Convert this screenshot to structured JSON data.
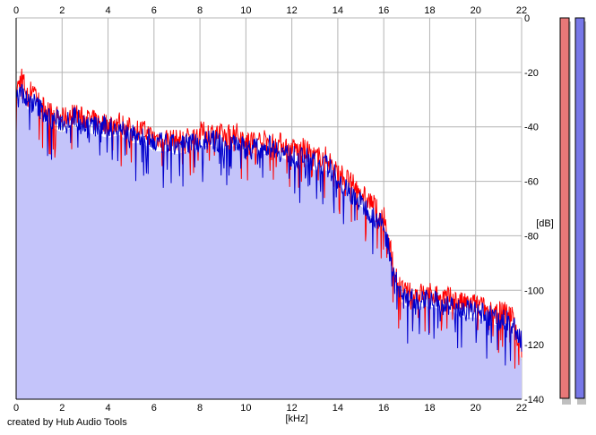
{
  "credit_text": "created by Hub Audio Tools",
  "chart_data": {
    "type": "area",
    "title": "",
    "xlabel": "[kHz]",
    "ylabel": "[dB]",
    "xlim": [
      0,
      22
    ],
    "ylim": [
      -140,
      0
    ],
    "x_ticks": [
      0,
      2,
      4,
      6,
      8,
      10,
      12,
      14,
      16,
      18,
      20,
      22
    ],
    "y_ticks": [
      0,
      -20,
      -40,
      -60,
      -80,
      -100,
      -120,
      -140
    ],
    "y_tick_labels": [
      "0",
      "-20",
      "-40",
      "-60",
      "-80",
      "-100",
      "-120",
      "-140"
    ],
    "grid": true,
    "fill_color": "#c4c4fa",
    "grid_color": "#b4b4b4",
    "series": [
      {
        "color": "#ff0000",
        "x": [
          0,
          0.25,
          0.5,
          0.75,
          1,
          1.5,
          2,
          2.5,
          3,
          3.5,
          4,
          4.5,
          5,
          5.5,
          6,
          6.5,
          7,
          7.5,
          8,
          8.5,
          9,
          9.5,
          10,
          10.5,
          11,
          11.5,
          12,
          12.5,
          13,
          13.5,
          14,
          14.5,
          15,
          15.5,
          16,
          16.3,
          16.6,
          17,
          17.5,
          18,
          18.5,
          19,
          19.5,
          20,
          20.5,
          21,
          21.5,
          22
        ],
        "values": [
          -26,
          -20,
          -28,
          -24,
          -30,
          -34,
          -36,
          -34,
          -36,
          -37,
          -38,
          -37,
          -40,
          -40,
          -43,
          -43,
          -44,
          -43,
          -41,
          -41,
          -42,
          -41,
          -43,
          -44,
          -44,
          -45,
          -47,
          -47,
          -50,
          -50,
          -55,
          -59,
          -63,
          -67,
          -72,
          -84,
          -97,
          -100,
          -100,
          -100,
          -101,
          -102,
          -104,
          -104,
          -106,
          -107,
          -106,
          -120
        ]
      },
      {
        "color": "#0000cc",
        "x": [
          0,
          0.25,
          0.5,
          0.75,
          1,
          1.5,
          2,
          2.5,
          3,
          3.5,
          4,
          4.5,
          5,
          5.5,
          6,
          6.5,
          7,
          7.5,
          8,
          8.5,
          9,
          9.5,
          10,
          10.5,
          11,
          11.5,
          12,
          12.5,
          13,
          13.5,
          14,
          14.5,
          15,
          15.5,
          16,
          16.3,
          16.6,
          17,
          17.5,
          18,
          18.5,
          19,
          19.5,
          20,
          20.5,
          21,
          21.5,
          22
        ],
        "values": [
          -28,
          -26,
          -30,
          -30,
          -32,
          -36,
          -37,
          -35,
          -38,
          -39,
          -39,
          -39,
          -42,
          -42,
          -45,
          -45,
          -46,
          -45,
          -44,
          -44,
          -45,
          -44,
          -47,
          -47,
          -46,
          -48,
          -50,
          -50,
          -52,
          -53,
          -58,
          -63,
          -67,
          -71,
          -76,
          -86,
          -98,
          -102,
          -102,
          -103,
          -104,
          -105,
          -106,
          -107,
          -108,
          -110,
          -110,
          -118
        ]
      }
    ],
    "meters": [
      {
        "color": "#e87878"
      },
      {
        "color": "#7878e8"
      }
    ]
  }
}
